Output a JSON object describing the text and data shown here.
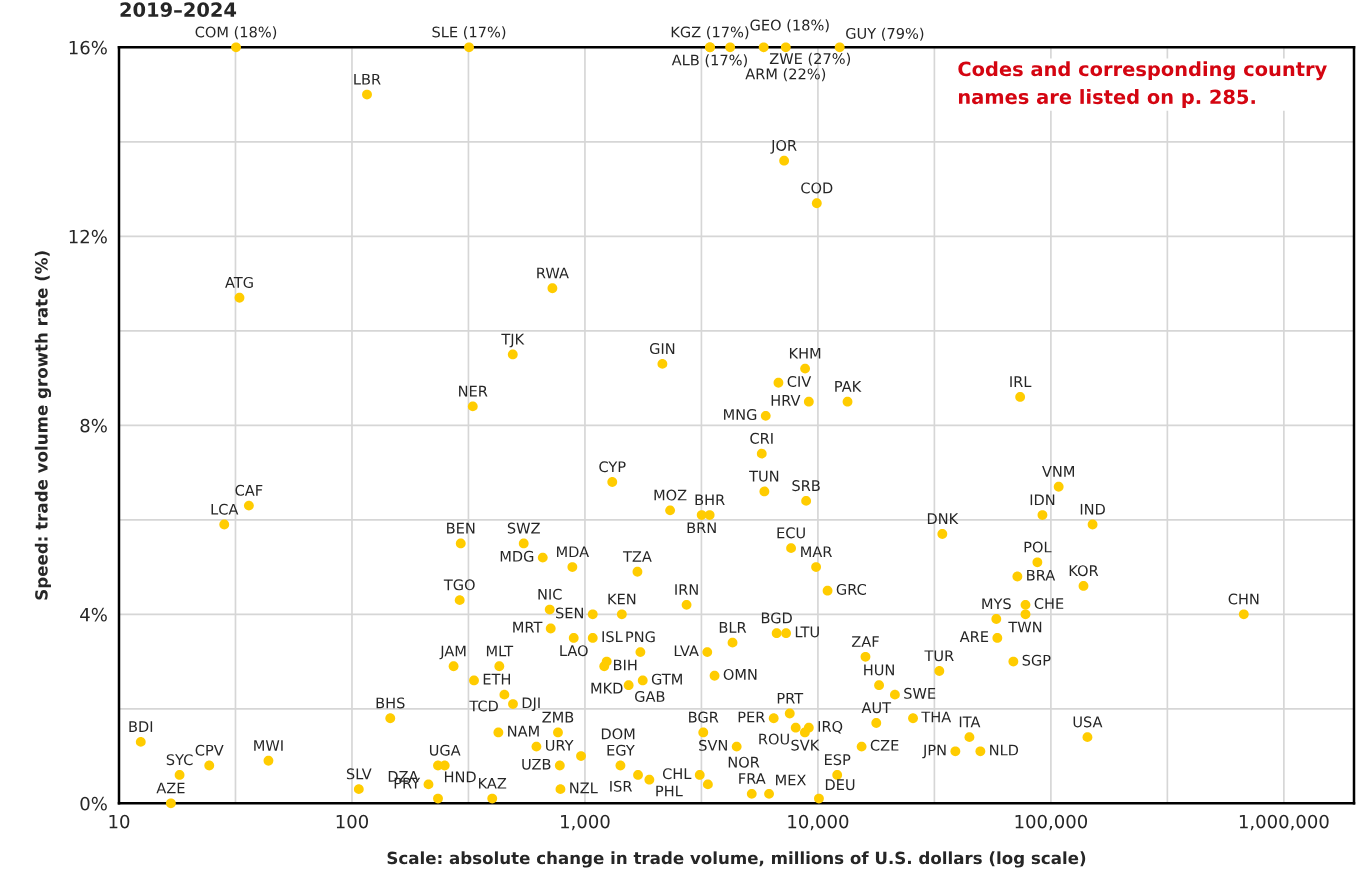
{
  "chart_data": {
    "type": "scatter",
    "title": "2019–2024",
    "xlabel": "Scale: absolute change in trade volume, millions of U.S. dollars (log scale)",
    "ylabel": "Speed: trade volume growth rate (%)",
    "color": "#ffcc00",
    "marker": "circle",
    "log": "x",
    "grid": true,
    "xlim": [
      10,
      2000000
    ],
    "ylim": [
      0,
      16
    ],
    "xticks": [
      10,
      {
        "value": 31.62,
        "label": null
      },
      100,
      {
        "value": 316.2,
        "label": null
      },
      {
        "value": 1000,
        "label": "1,000"
      },
      {
        "value": 3162,
        "label": null
      },
      {
        "value": 10000,
        "label": "10,000"
      },
      {
        "value": 31620,
        "label": null
      },
      {
        "value": 100000,
        "label": "100,000"
      },
      {
        "value": 316200,
        "label": null
      },
      {
        "value": 1000000,
        "label": "1,000,000"
      }
    ],
    "yticks": [
      {
        "value": 0,
        "label": "0%"
      },
      {
        "value": 2,
        "label": null
      },
      {
        "value": 4,
        "label": "4%"
      },
      {
        "value": 6,
        "label": null
      },
      {
        "value": 8,
        "label": "8%"
      },
      {
        "value": 10,
        "label": null
      },
      {
        "value": 12,
        "label": "12%"
      },
      {
        "value": 14,
        "label": null
      },
      {
        "value": 16,
        "label": "16%"
      }
    ],
    "x": [
      31.8,
      318,
      3440,
      3440,
      4200,
      5850,
      7280,
      12400,
      116,
      7160,
      9890,
      32.9,
      725,
      490,
      2150,
      8810,
      6770,
      9140,
      13400,
      73800,
      330,
      5970,
      5740,
      1310,
      108000,
      5890,
      8900,
      2320,
      3170,
      3430,
      28.3,
      36.1,
      92000,
      151000,
      34200,
      7670,
      293,
      546,
      659,
      883,
      1680,
      9820,
      87500,
      71800,
      138000,
      11000,
      290,
      706,
      2730,
      1440,
      1080,
      77800,
      673000,
      713,
      1080,
      58300,
      77800,
      895,
      4300,
      6650,
      7300,
      58900,
      1730,
      1240,
      3350,
      273,
      429,
      1210,
      16000,
      3600,
      69000,
      33200,
      334,
      451,
      1770,
      1540,
      18300,
      491,
      21400,
      146,
      25600,
      425,
      766,
      6460,
      7570,
      9140,
      17800,
      8030,
      8790,
      12.4,
      619,
      3220,
      4480,
      44700,
      143500,
      15400,
      38900,
      49800,
      24.4,
      43.8,
      250,
      234,
      780,
      1420,
      962,
      18.2,
      3110,
      1690,
      1890,
      12100,
      107,
      213,
      234,
      785,
      400,
      5200,
      6170,
      3370,
      10100,
      16.7
    ],
    "values": [
      16,
      16,
      16,
      16,
      16,
      16,
      16,
      16,
      15.0,
      13.6,
      12.7,
      10.7,
      10.9,
      9.5,
      9.3,
      9.2,
      8.9,
      8.5,
      8.5,
      8.6,
      8.4,
      8.2,
      7.4,
      6.8,
      6.7,
      6.6,
      6.4,
      6.2,
      6.1,
      6.1,
      5.9,
      6.3,
      6.1,
      5.9,
      5.7,
      5.4,
      5.5,
      5.5,
      5.2,
      5.0,
      4.9,
      5.0,
      5.1,
      4.8,
      4.6,
      4.5,
      4.3,
      4.1,
      4.2,
      4.0,
      4.0,
      4.2,
      4.0,
      3.7,
      3.5,
      3.9,
      4.0,
      3.5,
      3.4,
      3.6,
      3.6,
      3.5,
      3.2,
      3.0,
      3.2,
      2.9,
      2.9,
      2.9,
      3.1,
      2.7,
      3.0,
      2.8,
      2.6,
      2.3,
      2.6,
      2.5,
      2.5,
      2.1,
      2.3,
      1.8,
      1.8,
      1.5,
      1.5,
      1.8,
      1.9,
      1.6,
      1.7,
      1.6,
      1.5,
      1.3,
      1.2,
      1.5,
      1.2,
      1.4,
      1.4,
      1.2,
      1.1,
      1.1,
      0.8,
      0.9,
      0.8,
      0.8,
      0.8,
      0.8,
      1.0,
      0.6,
      0.6,
      0.6,
      0.5,
      0.6,
      0.3,
      0.4,
      0.1,
      0.3,
      0.1,
      0.2,
      0.2,
      0.4,
      0.1,
      0.0
    ],
    "annotations": [
      "Codes and corresponding country names are listed on p. 285.",
      {
        "text": "COM (18%)",
        "x": 31.8,
        "y": 16
      },
      {
        "text": "SLE (17%)",
        "x": 318,
        "y": 16
      },
      {
        "text": "KGZ (17%)",
        "x": 3440,
        "y": 16
      },
      {
        "text": "ALB (17%)",
        "x": 3440,
        "y": 16
      },
      {
        "text": "GEO (18%)",
        "x": 4200,
        "y": 16
      },
      {
        "text": "ZWE (27%)",
        "x": 5850,
        "y": 16
      },
      {
        "text": "ARM (22%)",
        "x": 7280,
        "y": 16
      },
      {
        "text": "GUY (79%)",
        "x": 12400,
        "y": 16
      },
      {
        "text": "LBR",
        "x": 116,
        "y": 15.0
      },
      {
        "text": "JOR",
        "x": 7160,
        "y": 13.6
      },
      {
        "text": "COD",
        "x": 9890,
        "y": 12.7
      },
      {
        "text": "ATG",
        "x": 32.9,
        "y": 10.7
      },
      {
        "text": "RWA",
        "x": 725,
        "y": 10.9
      },
      {
        "text": "TJK",
        "x": 490,
        "y": 9.5
      },
      {
        "text": "GIN",
        "x": 2150,
        "y": 9.3
      },
      {
        "text": "KHM",
        "x": 8810,
        "y": 9.2
      },
      {
        "text": "CIV",
        "x": 6770,
        "y": 8.9
      },
      {
        "text": "HRV",
        "x": 9140,
        "y": 8.5
      },
      {
        "text": "PAK",
        "x": 13400,
        "y": 8.5
      },
      {
        "text": "IRL",
        "x": 73800,
        "y": 8.6
      },
      {
        "text": "NER",
        "x": 330,
        "y": 8.4
      },
      {
        "text": "MNG",
        "x": 5970,
        "y": 8.2
      },
      {
        "text": "CRI",
        "x": 5740,
        "y": 7.4
      },
      {
        "text": "CYP",
        "x": 1310,
        "y": 6.8
      },
      {
        "text": "VNM",
        "x": 108000,
        "y": 6.7
      },
      {
        "text": "TUN",
        "x": 5890,
        "y": 6.6
      },
      {
        "text": "SRB",
        "x": 8900,
        "y": 6.4
      },
      {
        "text": "MOZ",
        "x": 2320,
        "y": 6.2
      },
      {
        "text": "BRN",
        "x": 3170,
        "y": 6.1
      },
      {
        "text": "BHR",
        "x": 3430,
        "y": 6.1
      },
      {
        "text": "LCA",
        "x": 28.3,
        "y": 5.9
      },
      {
        "text": "CAF",
        "x": 36.1,
        "y": 6.3
      },
      {
        "text": "IDN",
        "x": 92000,
        "y": 6.1
      },
      {
        "text": "IND",
        "x": 151000,
        "y": 5.9
      },
      {
        "text": "DNK",
        "x": 34200,
        "y": 5.7
      },
      {
        "text": "ECU",
        "x": 7670,
        "y": 5.4
      },
      {
        "text": "BEN",
        "x": 293,
        "y": 5.5
      },
      {
        "text": "SWZ",
        "x": 546,
        "y": 5.5
      },
      {
        "text": "MDG",
        "x": 659,
        "y": 5.2
      },
      {
        "text": "MDA",
        "x": 883,
        "y": 5.0
      },
      {
        "text": "TZA",
        "x": 1680,
        "y": 4.9
      },
      {
        "text": "MAR",
        "x": 9820,
        "y": 5.0
      },
      {
        "text": "POL",
        "x": 87500,
        "y": 5.1
      },
      {
        "text": "BRA",
        "x": 71800,
        "y": 4.8
      },
      {
        "text": "KOR",
        "x": 138000,
        "y": 4.6
      },
      {
        "text": "GRC",
        "x": 11000,
        "y": 4.5
      },
      {
        "text": "TGO",
        "x": 290,
        "y": 4.3
      },
      {
        "text": "NIC",
        "x": 706,
        "y": 4.1
      },
      {
        "text": "IRN",
        "x": 2730,
        "y": 4.2
      },
      {
        "text": "KEN",
        "x": 1440,
        "y": 4.0
      },
      {
        "text": "SEN",
        "x": 1080,
        "y": 4.0
      },
      {
        "text": "CHE",
        "x": 77800,
        "y": 4.2
      },
      {
        "text": "CHN",
        "x": 673000,
        "y": 4.0
      },
      {
        "text": "MRT",
        "x": 713,
        "y": 3.7
      },
      {
        "text": "ISL",
        "x": 1080,
        "y": 3.5
      },
      {
        "text": "MYS",
        "x": 58300,
        "y": 3.9
      },
      {
        "text": "TWN",
        "x": 77800,
        "y": 4.0
      },
      {
        "text": "LAO",
        "x": 895,
        "y": 3.5
      },
      {
        "text": "BLR",
        "x": 4300,
        "y": 3.4
      },
      {
        "text": "BGD",
        "x": 6650,
        "y": 3.6
      },
      {
        "text": "LTU",
        "x": 7300,
        "y": 3.6
      },
      {
        "text": "ARE",
        "x": 58900,
        "y": 3.5
      },
      {
        "text": "PNG",
        "x": 1730,
        "y": 3.2
      },
      {
        "text": "MKD",
        "x": 1240,
        "y": 3.0
      },
      {
        "text": "LVA",
        "x": 3350,
        "y": 3.2
      },
      {
        "text": "JAM",
        "x": 273,
        "y": 2.9
      },
      {
        "text": "MLT",
        "x": 429,
        "y": 2.9
      },
      {
        "text": "BIH",
        "x": 1210,
        "y": 2.9
      },
      {
        "text": "ZAF",
        "x": 16000,
        "y": 3.1
      },
      {
        "text": "OMN",
        "x": 3600,
        "y": 2.7
      },
      {
        "text": "SGP",
        "x": 69000,
        "y": 3.0
      },
      {
        "text": "TUR",
        "x": 33200,
        "y": 2.8
      },
      {
        "text": "ETH",
        "x": 334,
        "y": 2.6
      },
      {
        "text": "TCD",
        "x": 451,
        "y": 2.3
      },
      {
        "text": "GTM",
        "x": 1770,
        "y": 2.6
      },
      {
        "text": "GAB",
        "x": 1540,
        "y": 2.5
      },
      {
        "text": "HUN",
        "x": 18300,
        "y": 2.5
      },
      {
        "text": "DJI",
        "x": 491,
        "y": 2.1
      },
      {
        "text": "SWE",
        "x": 21400,
        "y": 2.3
      },
      {
        "text": "BHS",
        "x": 146,
        "y": 1.8
      },
      {
        "text": "THA",
        "x": 25600,
        "y": 1.8
      },
      {
        "text": "NAM",
        "x": 425,
        "y": 1.5
      },
      {
        "text": "ZMB",
        "x": 766,
        "y": 1.5
      },
      {
        "text": "PER",
        "x": 6460,
        "y": 1.8
      },
      {
        "text": "PRT",
        "x": 7570,
        "y": 1.9
      },
      {
        "text": "IRQ",
        "x": 9140,
        "y": 1.6
      },
      {
        "text": "AUT",
        "x": 17800,
        "y": 1.7
      },
      {
        "text": "ROU",
        "x": 8030,
        "y": 1.6
      },
      {
        "text": "SVK",
        "x": 8790,
        "y": 1.5
      },
      {
        "text": "BDI",
        "x": 12.4,
        "y": 1.3
      },
      {
        "text": "URY",
        "x": 619,
        "y": 1.2
      },
      {
        "text": "BGR",
        "x": 3220,
        "y": 1.5
      },
      {
        "text": "SVN",
        "x": 4480,
        "y": 1.2
      },
      {
        "text": "ITA",
        "x": 44700,
        "y": 1.4
      },
      {
        "text": "USA",
        "x": 143500,
        "y": 1.4
      },
      {
        "text": "CZE",
        "x": 15400,
        "y": 1.2
      },
      {
        "text": "JPN",
        "x": 38900,
        "y": 1.1
      },
      {
        "text": "NLD",
        "x": 49800,
        "y": 1.1
      },
      {
        "text": "CPV",
        "x": 24.4,
        "y": 0.8
      },
      {
        "text": "MWI",
        "x": 43.8,
        "y": 0.9
      },
      {
        "text": "UGA",
        "x": 250,
        "y": 0.8
      },
      {
        "text": "HND",
        "x": 234,
        "y": 0.8
      },
      {
        "text": "UZB",
        "x": 780,
        "y": 0.8
      },
      {
        "text": "EGY",
        "x": 1420,
        "y": 0.8
      },
      {
        "text": "DOM",
        "x": 962,
        "y": 1.0
      },
      {
        "text": "SYC",
        "x": 18.2,
        "y": 0.6
      },
      {
        "text": "CHL",
        "x": 3110,
        "y": 0.6
      },
      {
        "text": "ISR",
        "x": 1690,
        "y": 0.6
      },
      {
        "text": "PHL",
        "x": 1890,
        "y": 0.5
      },
      {
        "text": "ESP",
        "x": 12100,
        "y": 0.6
      },
      {
        "text": "SLV",
        "x": 107,
        "y": 0.3
      },
      {
        "text": "PRY",
        "x": 213,
        "y": 0.4
      },
      {
        "text": "DZA",
        "x": 234,
        "y": 0.1
      },
      {
        "text": "NZL",
        "x": 785,
        "y": 0.3
      },
      {
        "text": "KAZ",
        "x": 400,
        "y": 0.1
      },
      {
        "text": "FRA",
        "x": 5200,
        "y": 0.2
      },
      {
        "text": "MEX",
        "x": 6170,
        "y": 0.2
      },
      {
        "text": "NOR",
        "x": 3370,
        "y": 0.4
      },
      {
        "text": "DEU",
        "x": 10100,
        "y": 0.1
      },
      {
        "text": "AZE",
        "x": 16.7,
        "y": 0.0
      }
    ]
  }
}
